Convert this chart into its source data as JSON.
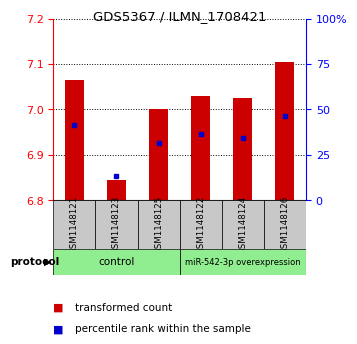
{
  "title": "GDS5367 / ILMN_1708421",
  "samples": [
    "GSM1148121",
    "GSM1148123",
    "GSM1148125",
    "GSM1148122",
    "GSM1148124",
    "GSM1148126"
  ],
  "red_bar_tops": [
    7.065,
    6.845,
    7.0,
    7.03,
    7.025,
    7.105
  ],
  "blue_marker_y": [
    6.965,
    6.853,
    6.925,
    6.945,
    6.937,
    6.985
  ],
  "bar_base": 6.8,
  "ylim_left": [
    6.8,
    7.2
  ],
  "ylim_right": [
    0,
    100
  ],
  "yticks_left": [
    6.8,
    6.9,
    7.0,
    7.1,
    7.2
  ],
  "yticks_right": [
    0,
    25,
    50,
    75,
    100
  ],
  "ytick_labels_right": [
    "0",
    "25",
    "50",
    "75",
    "100%"
  ],
  "bar_color": "#cc0000",
  "blue_color": "#0000cc",
  "control_label": "control",
  "mirna_label": "miR-542-3p overexpression",
  "group_bg": "#90ee90",
  "sample_bg": "#c8c8c8",
  "legend_red": "transformed count",
  "legend_blue": "percentile rank within the sample",
  "protocol_label": "protocol",
  "bar_width": 0.45
}
